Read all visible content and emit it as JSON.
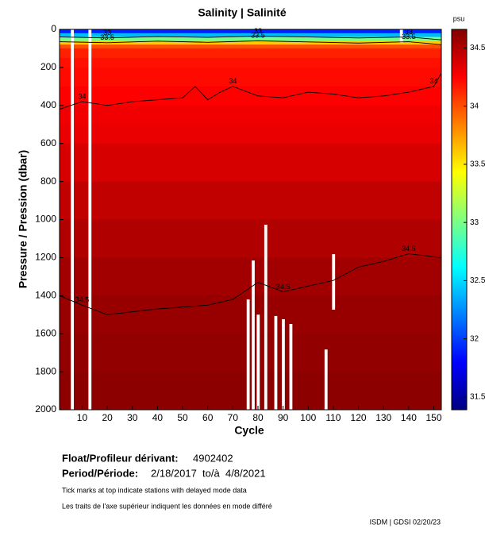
{
  "chart_data": {
    "type": "section",
    "title": "Salinity | Salinité",
    "x_label": "Cycle",
    "y_label": "Pressure / Pression (dbar)",
    "xlim": [
      1,
      153
    ],
    "xticks": [
      10,
      20,
      30,
      40,
      50,
      60,
      70,
      80,
      90,
      100,
      110,
      120,
      130,
      140,
      150
    ],
    "ylim": [
      0,
      2000
    ],
    "y_inverted": true,
    "yticks": [
      0,
      200,
      400,
      600,
      800,
      1000,
      1200,
      1400,
      1600,
      1800,
      2000
    ],
    "colormap": "jet",
    "colorbar": {
      "label": "psu",
      "lim": [
        31.39,
        34.66
      ],
      "ticks": [
        31.5,
        32,
        32.5,
        33,
        33.5,
        34,
        34.5
      ]
    },
    "heatmap": {
      "depth_edges": [
        0,
        20,
        40,
        60,
        80,
        100,
        150,
        200,
        300,
        400,
        500,
        600,
        800,
        1000,
        1200,
        1400,
        1600,
        1800,
        2000
      ],
      "values": [
        31.9,
        32.4,
        33.0,
        33.6,
        34.0,
        34.15,
        34.2,
        34.22,
        34.25,
        34.3,
        34.32,
        34.38,
        34.45,
        34.5,
        34.55,
        34.58,
        34.6,
        34.62
      ]
    },
    "gaps": [
      {
        "cycle": 6,
        "from": 0,
        "to": 2000
      },
      {
        "cycle": 13,
        "from": 0,
        "to": 2000
      },
      {
        "cycle": 137,
        "from": 0,
        "to": 70
      },
      {
        "cycle": 76,
        "from": 1420,
        "to": 2000
      },
      {
        "cycle": 78,
        "from": 1215,
        "to": 2000
      },
      {
        "cycle": 80,
        "from": 1500,
        "to": 2000
      },
      {
        "cycle": 83,
        "from": 1027,
        "to": 2000
      },
      {
        "cycle": 87,
        "from": 1507,
        "to": 2000
      },
      {
        "cycle": 90,
        "from": 1524,
        "to": 2000
      },
      {
        "cycle": 93,
        "from": 1549,
        "to": 2000
      },
      {
        "cycle": 107,
        "from": 1683,
        "to": 2000
      },
      {
        "cycle": 110,
        "from": 1182,
        "to": 1474
      }
    ],
    "contours": [
      {
        "label": "33",
        "x": [
          1,
          20,
          40,
          60,
          80,
          100,
          120,
          140,
          153
        ],
        "y": [
          40,
          45,
          38,
          42,
          35,
          40,
          45,
          40,
          55
        ]
      },
      {
        "label": "33.5",
        "x": [
          1,
          20,
          40,
          60,
          80,
          100,
          120,
          140,
          153
        ],
        "y": [
          65,
          70,
          62,
          68,
          60,
          66,
          72,
          65,
          80
        ]
      },
      {
        "label": "34",
        "x": [
          1,
          10,
          20,
          30,
          40,
          50,
          55,
          60,
          65,
          70,
          80,
          90,
          100,
          110,
          120,
          130,
          140,
          150,
          153
        ],
        "y": [
          420,
          380,
          400,
          380,
          370,
          360,
          300,
          370,
          330,
          300,
          350,
          360,
          330,
          340,
          360,
          350,
          330,
          300,
          230
        ]
      },
      {
        "label": "34.5",
        "x": [
          1,
          10,
          20,
          40,
          60,
          70,
          80,
          90,
          100,
          110,
          120,
          130,
          140,
          153
        ],
        "y": [
          1400,
          1450,
          1500,
          1470,
          1450,
          1420,
          1330,
          1380,
          1350,
          1320,
          1250,
          1220,
          1180,
          1200
        ]
      }
    ],
    "float_label": "Float/Profileur dérivant:",
    "float_id": "4902402",
    "period_label": "Period/Période:",
    "period": "2/18/2017  to/à  4/8/2021",
    "note_en": "Tick marks at top indicate stations with delayed mode data",
    "note_fr": "Les traits de l'axe supérieur indiquent les données en mode différé",
    "credit": "ISDM | GDSI  02/20/23"
  }
}
